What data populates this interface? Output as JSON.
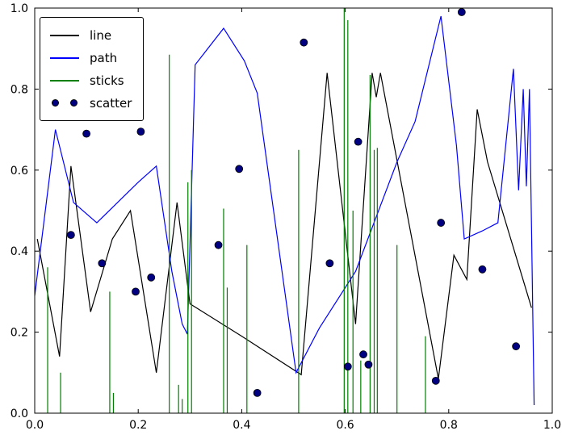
{
  "chart_data": {
    "type": "mixed",
    "title": "",
    "xlabel": "",
    "ylabel": "",
    "xlim": [
      0.0,
      1.0
    ],
    "ylim": [
      0.0,
      1.0
    ],
    "xticks": [
      0.0,
      0.2,
      0.4,
      0.6,
      0.8,
      1.0
    ],
    "xtick_labels": [
      "0.0",
      "0.2",
      "0.4",
      "0.6",
      "0.8",
      "1.0"
    ],
    "yticks": [
      0.0,
      0.2,
      0.4,
      0.6,
      0.8,
      1.0
    ],
    "ytick_labels": [
      "0.0",
      "0.2",
      "0.4",
      "0.6",
      "0.8",
      "1.0"
    ],
    "grid": false,
    "legend_position": "upper left",
    "background_color": "#ffffff",
    "frame_color": "#000000",
    "series": [
      {
        "name": "line",
        "type": "line",
        "color": "#000000",
        "x": [
          0.005,
          0.048,
          0.07,
          0.108,
          0.15,
          0.185,
          0.235,
          0.275,
          0.3,
          0.4,
          0.515,
          0.565,
          0.62,
          0.652,
          0.66,
          0.668,
          0.78,
          0.81,
          0.835,
          0.855,
          0.875,
          0.96
        ],
        "y": [
          0.43,
          0.14,
          0.61,
          0.25,
          0.43,
          0.5,
          0.1,
          0.52,
          0.27,
          0.19,
          0.095,
          0.84,
          0.22,
          0.84,
          0.78,
          0.84,
          0.085,
          0.39,
          0.33,
          0.75,
          0.62,
          0.26
        ]
      },
      {
        "name": "path",
        "type": "line",
        "color": "#0000ff",
        "x": [
          0.0,
          0.04,
          0.075,
          0.12,
          0.2,
          0.235,
          0.265,
          0.285,
          0.295,
          0.31,
          0.365,
          0.405,
          0.43,
          0.505,
          0.55,
          0.62,
          0.7,
          0.735,
          0.785,
          0.815,
          0.83,
          0.865,
          0.895,
          0.925,
          0.935,
          0.944,
          0.95,
          0.956,
          0.965
        ],
        "y": [
          0.29,
          0.7,
          0.52,
          0.47,
          0.57,
          0.61,
          0.35,
          0.22,
          0.195,
          0.86,
          0.95,
          0.87,
          0.79,
          0.1,
          0.21,
          0.35,
          0.62,
          0.72,
          0.98,
          0.66,
          0.43,
          0.45,
          0.47,
          0.85,
          0.55,
          0.8,
          0.56,
          0.8,
          0.02
        ]
      },
      {
        "name": "sticks",
        "type": "sticks",
        "color": "#008000",
        "x": [
          0.025,
          0.05,
          0.145,
          0.152,
          0.26,
          0.278,
          0.285,
          0.296,
          0.303,
          0.365,
          0.372,
          0.41,
          0.51,
          0.598,
          0.605,
          0.615,
          0.63,
          0.648,
          0.656,
          0.662,
          0.7,
          0.755
        ],
        "y": [
          0.36,
          0.1,
          0.3,
          0.05,
          0.885,
          0.07,
          0.035,
          0.57,
          0.6,
          0.505,
          0.31,
          0.415,
          0.65,
          1.0,
          0.97,
          0.5,
          0.13,
          0.835,
          0.65,
          0.655,
          0.415,
          0.19
        ]
      },
      {
        "name": "scatter",
        "type": "scatter",
        "color": "#000080",
        "x": [
          0.07,
          0.1,
          0.13,
          0.195,
          0.205,
          0.225,
          0.355,
          0.395,
          0.43,
          0.52,
          0.57,
          0.605,
          0.625,
          0.635,
          0.645,
          0.775,
          0.785,
          0.825,
          0.865,
          0.93
        ],
        "y": [
          0.44,
          0.69,
          0.37,
          0.3,
          0.695,
          0.335,
          0.415,
          0.603,
          0.05,
          0.915,
          0.37,
          0.115,
          0.67,
          0.145,
          0.12,
          0.08,
          0.47,
          0.99,
          0.355,
          0.165
        ]
      }
    ]
  }
}
